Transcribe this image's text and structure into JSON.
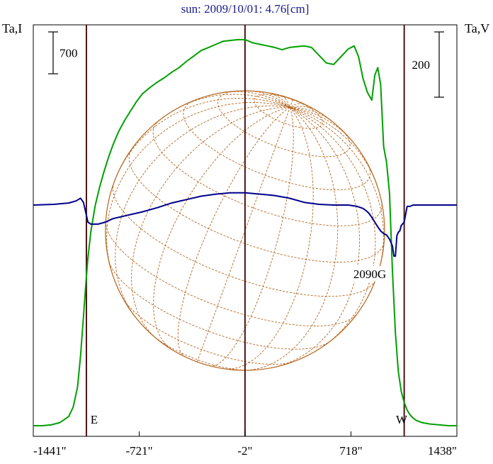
{
  "chart_data": {
    "type": "line",
    "title": "sun: 2009/10/01: 4.76[cm]",
    "left_axis_label": "Ta,I",
    "right_axis_label": "Ta,V",
    "x_tick_labels": [
      "-1441\"",
      "-721\"",
      "-2\"",
      "718\"",
      "1438\""
    ],
    "x_ticks": [
      -1441,
      -721,
      -2,
      718,
      1438
    ],
    "xlim": [
      -1441,
      1438
    ],
    "limb_markers": {
      "east": -1080,
      "center": -2,
      "west": 1080
    },
    "limb_labels": {
      "east": "E",
      "west": "W"
    },
    "scale_bars": [
      {
        "side": "left",
        "label": "700",
        "value": 700
      },
      {
        "side": "right",
        "label": "200",
        "value": 200
      }
    ],
    "annotations": [
      {
        "text": "2090G",
        "x": 1020
      }
    ],
    "series": [
      {
        "channel": "I",
        "color": "#00a000",
        "x": [
          -1441,
          -1380,
          -1320,
          -1260,
          -1200,
          -1170,
          -1140,
          -1120,
          -1100,
          -1085,
          -1070,
          -1050,
          -1020,
          -990,
          -960,
          -930,
          -900,
          -860,
          -820,
          -780,
          -740,
          -700,
          -650,
          -600,
          -550,
          -500,
          -450,
          -400,
          -350,
          -300,
          -250,
          -200,
          -150,
          -100,
          -50,
          0,
          50,
          100,
          150,
          200,
          250,
          300,
          350,
          400,
          450,
          500,
          550,
          600,
          650,
          700,
          740,
          770,
          800,
          830,
          860,
          880,
          900,
          920,
          940,
          960,
          980,
          1000,
          1020,
          1040,
          1060,
          1080,
          1100,
          1120,
          1140,
          1160,
          1200,
          1260,
          1320,
          1380,
          1438
        ],
        "y": [
          0,
          0,
          5,
          20,
          60,
          120,
          250,
          450,
          700,
          900,
          1080,
          1250,
          1420,
          1540,
          1640,
          1730,
          1810,
          1900,
          1970,
          2030,
          2090,
          2140,
          2180,
          2215,
          2245,
          2280,
          2310,
          2350,
          2385,
          2420,
          2440,
          2460,
          2480,
          2485,
          2490,
          2490,
          2470,
          2460,
          2450,
          2440,
          2425,
          2440,
          2445,
          2450,
          2440,
          2390,
          2340,
          2330,
          2380,
          2430,
          2450,
          2380,
          2240,
          2150,
          2100,
          2260,
          2310,
          2200,
          1800,
          1700,
          1500,
          1000,
          600,
          350,
          220,
          150,
          100,
          70,
          50,
          35,
          20,
          10,
          5,
          0,
          0
        ]
      },
      {
        "channel": "V",
        "color": "#00008b",
        "x": [
          -1441,
          -1300,
          -1200,
          -1150,
          -1120,
          -1100,
          -1085,
          -1070,
          -1050,
          -1000,
          -950,
          -900,
          -800,
          -700,
          -600,
          -500,
          -400,
          -300,
          -200,
          -100,
          0,
          100,
          200,
          300,
          400,
          500,
          600,
          650,
          700,
          760,
          800,
          820,
          840,
          860,
          880,
          900,
          920,
          940,
          960,
          980,
          1000,
          1010,
          1020,
          1030,
          1040,
          1050,
          1060,
          1080,
          1100,
          1120,
          1140,
          1200,
          1300,
          1438
        ],
        "y": [
          0,
          1,
          3,
          6,
          10,
          4,
          -10,
          -25,
          -28,
          -28,
          -25,
          -20,
          -15,
          -10,
          -4,
          3,
          8,
          13,
          16,
          18,
          18,
          16,
          14,
          10,
          4,
          1,
          0,
          0,
          0,
          -2,
          -5,
          -8,
          -12,
          -18,
          -25,
          -32,
          -38,
          -42,
          -44,
          -50,
          -60,
          -75,
          -75,
          -45,
          -40,
          -38,
          -30,
          -25,
          -2,
          -2,
          0,
          0,
          0,
          0
        ]
      }
    ]
  }
}
